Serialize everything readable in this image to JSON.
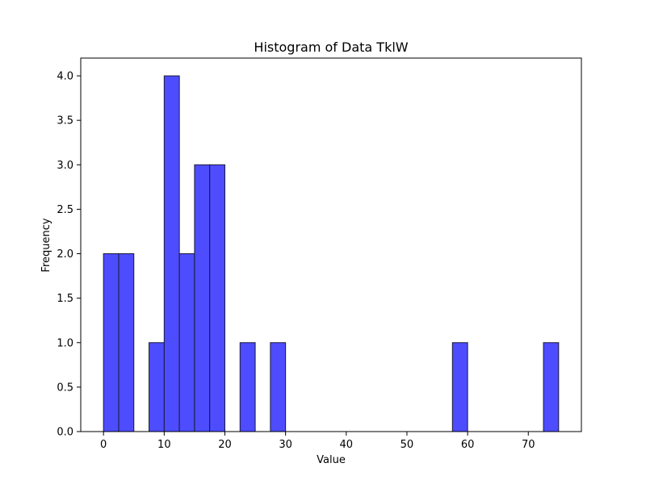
{
  "chart_data": {
    "type": "bar",
    "title": "Histogram of Data TklW",
    "xlabel": "Value",
    "ylabel": "Frequency",
    "xlim": [
      -3.75,
      78.75
    ],
    "ylim": [
      0,
      4.2
    ],
    "x_ticks": [
      0,
      10,
      20,
      30,
      40,
      50,
      60,
      70
    ],
    "y_ticks": [
      0.0,
      0.5,
      1.0,
      1.5,
      2.0,
      2.5,
      3.0,
      3.5,
      4.0
    ],
    "y_tick_labels": [
      "0.0",
      "0.5",
      "1.0",
      "1.5",
      "2.0",
      "2.5",
      "3.0",
      "3.5",
      "4.0"
    ],
    "bin_width": 2.5,
    "bins": [
      {
        "x0": 0.0,
        "x1": 2.5,
        "count": 2
      },
      {
        "x0": 2.5,
        "x1": 5.0,
        "count": 2
      },
      {
        "x0": 5.0,
        "x1": 7.5,
        "count": 0
      },
      {
        "x0": 7.5,
        "x1": 10.0,
        "count": 1
      },
      {
        "x0": 10.0,
        "x1": 12.5,
        "count": 4
      },
      {
        "x0": 12.5,
        "x1": 15.0,
        "count": 2
      },
      {
        "x0": 15.0,
        "x1": 17.5,
        "count": 3
      },
      {
        "x0": 17.5,
        "x1": 20.0,
        "count": 3
      },
      {
        "x0": 20.0,
        "x1": 22.5,
        "count": 0
      },
      {
        "x0": 22.5,
        "x1": 25.0,
        "count": 1
      },
      {
        "x0": 25.0,
        "x1": 27.5,
        "count": 0
      },
      {
        "x0": 27.5,
        "x1": 30.0,
        "count": 1
      },
      {
        "x0": 30.0,
        "x1": 32.5,
        "count": 0
      },
      {
        "x0": 32.5,
        "x1": 35.0,
        "count": 0
      },
      {
        "x0": 35.0,
        "x1": 37.5,
        "count": 0
      },
      {
        "x0": 37.5,
        "x1": 40.0,
        "count": 0
      },
      {
        "x0": 40.0,
        "x1": 42.5,
        "count": 0
      },
      {
        "x0": 42.5,
        "x1": 45.0,
        "count": 0
      },
      {
        "x0": 45.0,
        "x1": 47.5,
        "count": 0
      },
      {
        "x0": 47.5,
        "x1": 50.0,
        "count": 0
      },
      {
        "x0": 50.0,
        "x1": 52.5,
        "count": 0
      },
      {
        "x0": 52.5,
        "x1": 55.0,
        "count": 0
      },
      {
        "x0": 55.0,
        "x1": 57.5,
        "count": 0
      },
      {
        "x0": 57.5,
        "x1": 60.0,
        "count": 1
      },
      {
        "x0": 60.0,
        "x1": 62.5,
        "count": 0
      },
      {
        "x0": 62.5,
        "x1": 65.0,
        "count": 0
      },
      {
        "x0": 65.0,
        "x1": 67.5,
        "count": 0
      },
      {
        "x0": 67.5,
        "x1": 70.0,
        "count": 0
      },
      {
        "x0": 70.0,
        "x1": 72.5,
        "count": 0
      },
      {
        "x0": 72.5,
        "x1": 75.0,
        "count": 1
      }
    ],
    "grid": false,
    "bar_color": "#4d4dff",
    "edge_color": "#1a1a33"
  }
}
